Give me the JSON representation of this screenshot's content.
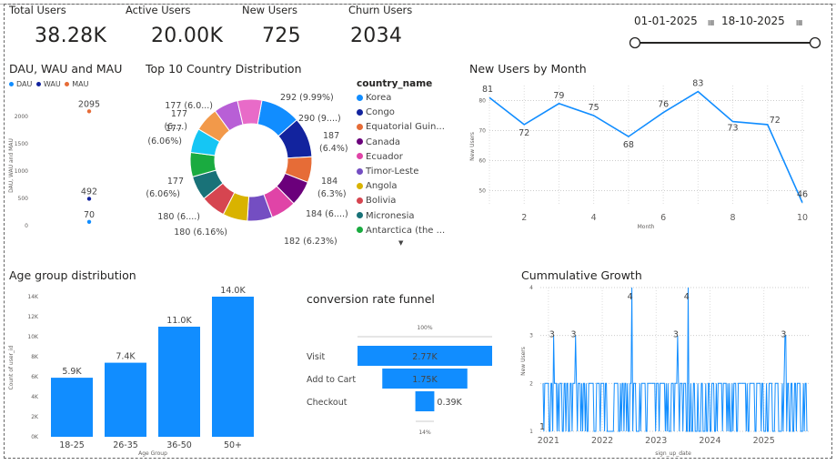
{
  "colors": {
    "primary": "#118DFF",
    "navy": "#12239E",
    "orange": "#E66C37"
  },
  "kpis": [
    {
      "label": "Total Users",
      "value": "38.28K"
    },
    {
      "label": "Active Users",
      "value": "20.00K"
    },
    {
      "label": "New Users",
      "value": "725"
    },
    {
      "label": "Churn Users",
      "value": "2034"
    }
  ],
  "date_filter": {
    "start": "01-01-2025",
    "end": "18-10-2025",
    "calendar_icon": "calendar-icon"
  },
  "chart_data": [
    {
      "id": "dau",
      "type": "scatter",
      "title": "DAU, WAU and MAU",
      "ylabel": "DAU, WAU and MAU",
      "ylim": [
        0,
        2200
      ],
      "yticks": [
        "0",
        "500",
        "1000",
        "1500",
        "2000"
      ],
      "legend": [
        "DAU",
        "WAU",
        "MAU"
      ],
      "series": [
        {
          "name": "DAU",
          "color": "#118DFF",
          "value": 70,
          "label": "70"
        },
        {
          "name": "WAU",
          "color": "#12239E",
          "value": 492,
          "label": "492"
        },
        {
          "name": "MAU",
          "color": "#E66C37",
          "value": 2095,
          "label": "2095"
        }
      ]
    },
    {
      "id": "country",
      "type": "pie",
      "title": "Top 10 Country Distribution",
      "legend_title": "country_name",
      "slices": [
        {
          "name": "Korea",
          "value": 292,
          "label": "292 (9.99%)",
          "color": "#118DFF"
        },
        {
          "name": "Congo",
          "value": 290,
          "label": "290 (9....)",
          "color": "#12239E"
        },
        {
          "name": "Equatorial Guin...",
          "value": 187,
          "label": "187 (6.4%)",
          "color": "#E66C37"
        },
        {
          "name": "Canada",
          "value": 184,
          "label": "184 (6.3%)",
          "color": "#6B007B"
        },
        {
          "name": "Ecuador",
          "value": 184,
          "label": "184 (6....)",
          "color": "#E044A7"
        },
        {
          "name": "Timor-Leste",
          "value": 182,
          "label": "182 (6.23%)",
          "color": "#744EC2"
        },
        {
          "name": "Angola",
          "value": 180,
          "label": "180 (6.16%)",
          "color": "#D9B300"
        },
        {
          "name": "Bolivia",
          "value": 180,
          "label": "180 (6....)",
          "color": "#D64550"
        },
        {
          "name": "Micronesia",
          "value": 177,
          "label": "177 (6.06%)",
          "color": "#197278"
        },
        {
          "name": "Antarctica (the ...",
          "value": 177,
          "label": "177 (6.06%)",
          "color": "#1AAB40"
        },
        {
          "name": "",
          "value": 177,
          "label": "177 (6....)",
          "color": "#15C6F4"
        },
        {
          "name": "",
          "value": 177,
          "label": "177 (6.0...)",
          "color": "#F2994A"
        },
        {
          "name": "",
          "value": 177,
          "label": "",
          "color": "#B85FD6"
        },
        {
          "name": "",
          "value": 177,
          "label": "",
          "color": "#E86BC8"
        }
      ]
    },
    {
      "id": "newusers",
      "type": "line",
      "title": "New Users by Month",
      "xlabel": "Month",
      "ylabel": "New Users",
      "x": [
        1,
        2,
        3,
        4,
        5,
        6,
        7,
        8,
        9,
        10
      ],
      "values": [
        81,
        72,
        79,
        75,
        68,
        76,
        83,
        73,
        72,
        46
      ],
      "xticks": [
        2,
        4,
        6,
        8,
        10
      ],
      "yticks": [
        50,
        60,
        70,
        80
      ],
      "ylim": [
        45,
        85
      ]
    },
    {
      "id": "age",
      "type": "bar",
      "title": "Age group distribution",
      "xlabel": "Age Group",
      "ylabel": "Count of user_id",
      "categories": [
        "18-25",
        "26-35",
        "36-50",
        "50+"
      ],
      "values": [
        5900,
        7400,
        11000,
        14000
      ],
      "labels": [
        "5.9K",
        "7.4K",
        "11.0K",
        "14.0K"
      ],
      "yticks": [
        "0K",
        "2K",
        "4K",
        "6K",
        "8K",
        "10K",
        "12K",
        "14K"
      ],
      "ylim": [
        0,
        14000
      ]
    },
    {
      "id": "funnel",
      "type": "bar",
      "title": "conversion rate funnel",
      "categories": [
        "Visit",
        "Add to Cart",
        "Checkout"
      ],
      "values": [
        2770,
        1750,
        390
      ],
      "labels": [
        "2.77K",
        "1.75K",
        "0.39K"
      ],
      "top_pct": "100%",
      "bottom_pct": "14%"
    },
    {
      "id": "cumgrowth",
      "type": "line",
      "title": "Cummulative Growth",
      "xlabel": "sign_up_date",
      "ylabel": "New Users",
      "xticks": [
        "2021",
        "2022",
        "2023",
        "2024",
        "2025"
      ],
      "yticks": [
        1,
        2,
        3,
        4
      ],
      "ylim": [
        1,
        4
      ],
      "xlim": [
        2020.85,
        2025.85
      ],
      "peaks": [
        {
          "x": 2021.1,
          "value": 3,
          "label": "3"
        },
        {
          "x": 2021.5,
          "value": 3,
          "label": "3"
        },
        {
          "x": 2022.55,
          "value": 4,
          "label": "4"
        },
        {
          "x": 2023.4,
          "value": 3,
          "label": "3"
        },
        {
          "x": 2023.6,
          "value": 4,
          "label": "4"
        },
        {
          "x": 2025.4,
          "value": 3,
          "label": "3"
        }
      ],
      "start_label": "1"
    }
  ]
}
